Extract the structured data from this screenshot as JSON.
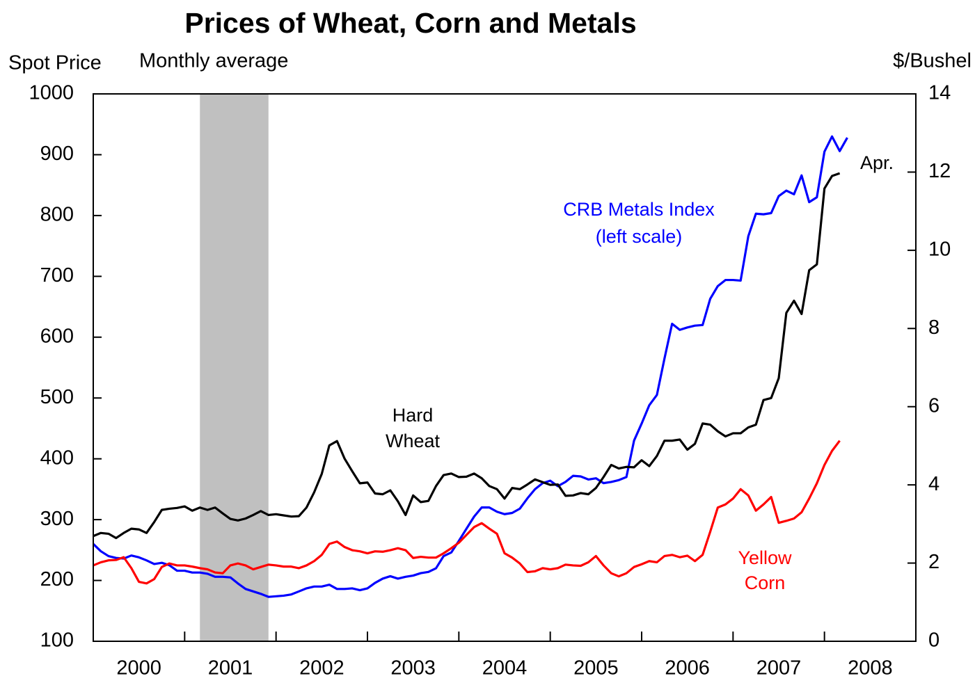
{
  "chart_data": {
    "type": "line",
    "title": "Prices of Wheat, Corn and Metals",
    "subtitle": "Monthly average",
    "y_label": "Spot Price",
    "y2_label": "$/Bushel",
    "annotations": [
      "Hard",
      "Wheat",
      "CRB Metals Index",
      "(left scale)",
      "Yellow",
      "Corn",
      "Apr."
    ],
    "xlim": [
      2000,
      2009
    ],
    "xticks": [
      2001,
      2002,
      2003,
      2004,
      2005,
      2006,
      2007,
      2008
    ],
    "xtick_labels": [
      {
        "value": 2000.5,
        "label": "2000"
      },
      {
        "value": 2001.5,
        "label": "2001"
      },
      {
        "value": 2002.5,
        "label": "2002"
      },
      {
        "value": 2003.5,
        "label": "2003"
      },
      {
        "value": 2004.5,
        "label": "2004"
      },
      {
        "value": 2005.5,
        "label": "2005"
      },
      {
        "value": 2006.5,
        "label": "2006"
      },
      {
        "value": 2007.5,
        "label": "2007"
      },
      {
        "value": 2008.5,
        "label": "2008"
      }
    ],
    "ylim": [
      100,
      1000
    ],
    "yticks": [
      100,
      200,
      300,
      400,
      500,
      600,
      700,
      800,
      900,
      1000
    ],
    "y2lim": [
      0,
      14
    ],
    "y2ticks": [
      0,
      2,
      4,
      6,
      8,
      10,
      12,
      14
    ],
    "shaded_regions": [
      {
        "start": 2001.167,
        "end": 2001.917,
        "color": "#c0c0c0"
      }
    ],
    "x": [
      2000,
      2000.083,
      2000.167,
      2000.25,
      2000.333,
      2000.417,
      2000.5,
      2000.583,
      2000.667,
      2000.75,
      2000.833,
      2000.917,
      2001,
      2001.083,
      2001.167,
      2001.25,
      2001.333,
      2001.417,
      2001.5,
      2001.583,
      2001.667,
      2001.75,
      2001.833,
      2001.917,
      2002,
      2002.083,
      2002.167,
      2002.25,
      2002.333,
      2002.417,
      2002.5,
      2002.583,
      2002.667,
      2002.75,
      2002.833,
      2002.917,
      2003,
      2003.083,
      2003.167,
      2003.25,
      2003.333,
      2003.417,
      2003.5,
      2003.583,
      2003.667,
      2003.75,
      2003.833,
      2003.917,
      2004,
      2004.083,
      2004.167,
      2004.25,
      2004.333,
      2004.417,
      2004.5,
      2004.583,
      2004.667,
      2004.75,
      2004.833,
      2004.917,
      2005,
      2005.083,
      2005.167,
      2005.25,
      2005.333,
      2005.417,
      2005.5,
      2005.583,
      2005.667,
      2005.75,
      2005.833,
      2005.917,
      2006,
      2006.083,
      2006.167,
      2006.25,
      2006.333,
      2006.417,
      2006.5,
      2006.583,
      2006.667,
      2006.75,
      2006.833,
      2006.917,
      2007,
      2007.083,
      2007.167,
      2007.25,
      2007.333,
      2007.417,
      2007.5,
      2007.583,
      2007.667,
      2007.75,
      2007.833,
      2007.917,
      2008,
      2008.083,
      2008.167,
      2008.25
    ],
    "series": [
      {
        "name": "CRB Metals Index",
        "color": "#0000ff",
        "axis": "y",
        "values": [
          260,
          248,
          240,
          237,
          236,
          241,
          238,
          233,
          227,
          229,
          225,
          216,
          216,
          213,
          213,
          211,
          206,
          206,
          205,
          195,
          186,
          182,
          178,
          173,
          174,
          175,
          177,
          182,
          187,
          190,
          190,
          193,
          186,
          186,
          187,
          184,
          187,
          196,
          203,
          207,
          203,
          206,
          208,
          212,
          214,
          220,
          240,
          246,
          265,
          285,
          305,
          320,
          320,
          313,
          309,
          311,
          318,
          335,
          350,
          360,
          364,
          355,
          362,
          372,
          371,
          366,
          368,
          360,
          362,
          365,
          370,
          430,
          458,
          488,
          505,
          565,
          622,
          612,
          616,
          619,
          620,
          663,
          684,
          694,
          694,
          693,
          766,
          803,
          802,
          804,
          832,
          841,
          835,
          866,
          822,
          830,
          905,
          930,
          906,
          928
        ]
      },
      {
        "name": "Hard Wheat",
        "color": "#000000",
        "axis": "y2",
        "values": [
          2.69,
          2.77,
          2.75,
          2.64,
          2.77,
          2.88,
          2.86,
          2.77,
          3.05,
          3.36,
          3.39,
          3.41,
          3.45,
          3.34,
          3.42,
          3.36,
          3.42,
          3.27,
          3.13,
          3.09,
          3.14,
          3.23,
          3.33,
          3.23,
          3.25,
          3.22,
          3.19,
          3.2,
          3.42,
          3.81,
          4.28,
          5.01,
          5.12,
          4.67,
          4.35,
          4.04,
          4.06,
          3.78,
          3.76,
          3.86,
          3.58,
          3.23,
          3.73,
          3.56,
          3.59,
          3.97,
          4.25,
          4.29,
          4.2,
          4.21,
          4.29,
          4.17,
          3.97,
          3.89,
          3.65,
          3.92,
          3.89,
          4.01,
          4.14,
          4.07,
          4.0,
          4.01,
          3.72,
          3.73,
          3.79,
          3.76,
          3.92,
          4.2,
          4.51,
          4.42,
          4.46,
          4.45,
          4.63,
          4.48,
          4.74,
          5.13,
          5.13,
          5.16,
          4.9,
          5.05,
          5.57,
          5.54,
          5.37,
          5.24,
          5.32,
          5.32,
          5.47,
          5.54,
          6.17,
          6.22,
          6.73,
          8.4,
          8.71,
          8.37,
          9.49,
          9.64,
          11.58,
          11.9,
          11.97,
          null
        ]
      },
      {
        "name": "Yellow Corn",
        "color": "#ff0000",
        "axis": "y2",
        "values": [
          1.94,
          2.02,
          2.07,
          2.08,
          2.15,
          1.87,
          1.52,
          1.48,
          1.59,
          1.9,
          1.99,
          1.94,
          1.94,
          1.91,
          1.87,
          1.84,
          1.76,
          1.74,
          1.94,
          1.99,
          1.94,
          1.84,
          1.9,
          1.96,
          1.94,
          1.91,
          1.91,
          1.87,
          1.94,
          2.05,
          2.21,
          2.49,
          2.55,
          2.41,
          2.33,
          2.3,
          2.25,
          2.3,
          2.29,
          2.33,
          2.38,
          2.33,
          2.13,
          2.16,
          2.14,
          2.14,
          2.25,
          2.38,
          2.52,
          2.72,
          2.92,
          3.02,
          2.88,
          2.75,
          2.25,
          2.14,
          1.99,
          1.77,
          1.79,
          1.87,
          1.84,
          1.87,
          1.96,
          1.94,
          1.93,
          2.02,
          2.18,
          1.94,
          1.74,
          1.66,
          1.74,
          1.9,
          1.97,
          2.05,
          2.02,
          2.18,
          2.21,
          2.15,
          2.19,
          2.05,
          2.21,
          2.8,
          3.42,
          3.5,
          3.65,
          3.89,
          3.73,
          3.34,
          3.5,
          3.69,
          3.03,
          3.08,
          3.14,
          3.3,
          3.65,
          4.04,
          4.51,
          4.87,
          5.13,
          null
        ]
      }
    ]
  }
}
